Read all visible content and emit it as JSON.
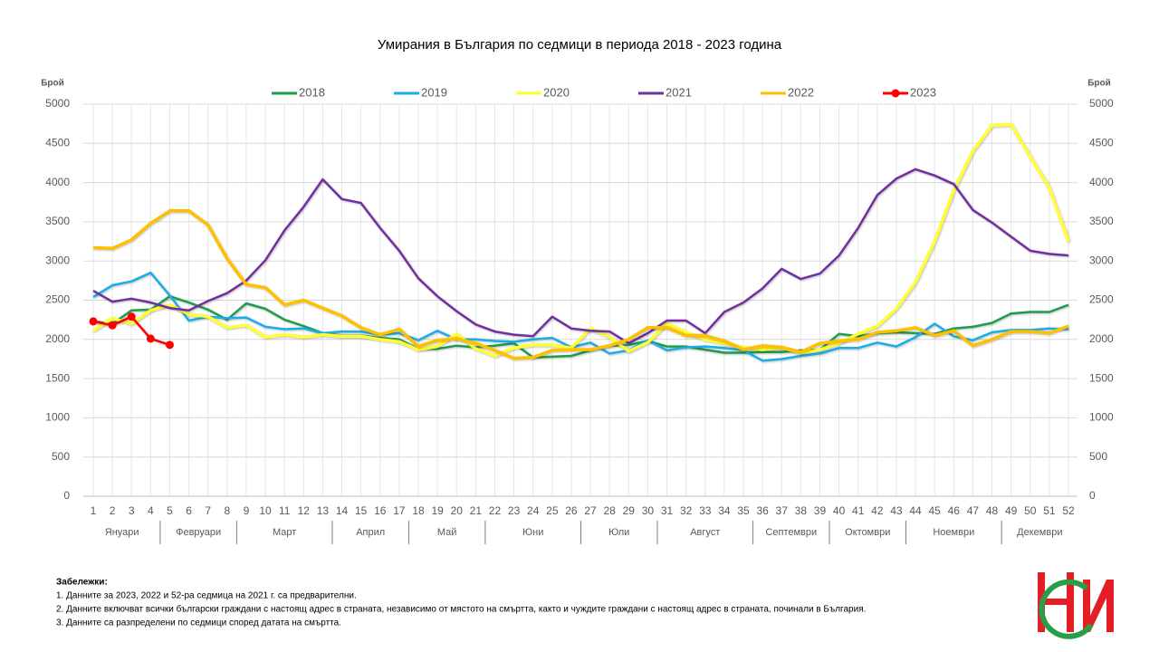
{
  "chart_data": {
    "type": "line",
    "title": "Умирания в България по седмици в периода 2018 - 2023 година",
    "ylabel": "Брой",
    "y2label": "Брой",
    "x": [
      1,
      2,
      3,
      4,
      5,
      6,
      7,
      8,
      9,
      10,
      11,
      12,
      13,
      14,
      15,
      16,
      17,
      18,
      19,
      20,
      21,
      22,
      23,
      24,
      25,
      26,
      27,
      28,
      29,
      30,
      31,
      32,
      33,
      34,
      35,
      36,
      37,
      38,
      39,
      40,
      41,
      42,
      43,
      44,
      45,
      46,
      47,
      48,
      49,
      50,
      51,
      52
    ],
    "months": [
      {
        "label": "Януари",
        "from": 1,
        "to": 4
      },
      {
        "label": "Февруари",
        "from": 5,
        "to": 8
      },
      {
        "label": "Март",
        "from": 9,
        "to": 13
      },
      {
        "label": "Април",
        "from": 14,
        "to": 17
      },
      {
        "label": "Май",
        "from": 18,
        "to": 21
      },
      {
        "label": "Юни",
        "from": 22,
        "to": 26
      },
      {
        "label": "Юли",
        "from": 27,
        "to": 30
      },
      {
        "label": "Август",
        "from": 31,
        "to": 35
      },
      {
        "label": "Септември",
        "from": 36,
        "to": 39
      },
      {
        "label": "Октомври",
        "from": 40,
        "to": 43
      },
      {
        "label": "Ноември",
        "from": 44,
        "to": 48
      },
      {
        "label": "Декември",
        "from": 49,
        "to": 52
      }
    ],
    "ylim": [
      0,
      5000
    ],
    "yticks": [
      0,
      500,
      1000,
      1500,
      2000,
      2500,
      3000,
      3500,
      4000,
      4500,
      5000
    ],
    "y2lim": [
      0,
      5000
    ],
    "y2ticks": [
      0,
      500,
      1000,
      1500,
      2000,
      2500,
      3000,
      3500,
      4000,
      4500,
      5000
    ],
    "grid": true,
    "legend": "top",
    "series": [
      {
        "name": "2018",
        "color": "#1e9e4a",
        "values": [
          2230,
          2200,
          2370,
          2380,
          2550,
          2470,
          2380,
          2250,
          2460,
          2390,
          2250,
          2170,
          2080,
          2050,
          2050,
          2020,
          2000,
          1880,
          1880,
          1920,
          1900,
          1920,
          1950,
          1770,
          1780,
          1790,
          1860,
          1920,
          1930,
          1980,
          1910,
          1910,
          1870,
          1830,
          1830,
          1840,
          1840,
          1860,
          1870,
          2070,
          2040,
          2080,
          2090,
          2080,
          2070,
          2140,
          2160,
          2210,
          2330,
          2350,
          2350,
          2440
        ]
      },
      {
        "name": "2019",
        "color": "#1aaee8",
        "values": [
          2540,
          2690,
          2740,
          2850,
          2560,
          2240,
          2290,
          2270,
          2280,
          2160,
          2130,
          2140,
          2080,
          2100,
          2100,
          2060,
          2080,
          1990,
          2110,
          2000,
          2000,
          1980,
          1970,
          2000,
          2020,
          1900,
          1960,
          1820,
          1860,
          1990,
          1860,
          1900,
          1910,
          1890,
          1860,
          1730,
          1750,
          1790,
          1820,
          1890,
          1890,
          1960,
          1910,
          2030,
          2200,
          2040,
          1990,
          2090,
          2120,
          2120,
          2140,
          2130
        ]
      },
      {
        "name": "2020",
        "color": "#ffff33",
        "values": [
          2110,
          2270,
          2200,
          2370,
          2440,
          2320,
          2290,
          2150,
          2180,
          2030,
          2060,
          2030,
          2060,
          2040,
          2040,
          2000,
          1970,
          1870,
          1910,
          2070,
          1880,
          1790,
          1890,
          1930,
          1930,
          1890,
          2140,
          2030,
          1850,
          1960,
          2200,
          2090,
          2000,
          1950,
          1900,
          1870,
          1890,
          1830,
          1870,
          1950,
          2070,
          2170,
          2390,
          2730,
          3250,
          3900,
          4400,
          4730,
          4740,
          4330,
          3930,
          3250
        ]
      },
      {
        "name": "2021",
        "color": "#7030a0",
        "values": [
          2620,
          2480,
          2520,
          2470,
          2400,
          2370,
          2490,
          2590,
          2750,
          3010,
          3390,
          3690,
          4040,
          3790,
          3740,
          3420,
          3130,
          2780,
          2550,
          2360,
          2190,
          2100,
          2060,
          2040,
          2290,
          2140,
          2110,
          2100,
          1950,
          2080,
          2240,
          2240,
          2080,
          2350,
          2470,
          2650,
          2900,
          2770,
          2840,
          3070,
          3420,
          3840,
          4050,
          4170,
          4090,
          3980,
          3650,
          3490,
          3310,
          3130,
          3090,
          3070
        ]
      },
      {
        "name": "2022",
        "color": "#ffc000",
        "values": [
          3170,
          3160,
          3270,
          3480,
          3640,
          3640,
          3460,
          3030,
          2700,
          2660,
          2440,
          2500,
          2400,
          2300,
          2150,
          2060,
          2130,
          1910,
          1990,
          2010,
          1950,
          1860,
          1760,
          1770,
          1860,
          1870,
          1870,
          1920,
          2000,
          2150,
          2150,
          2050,
          2050,
          1980,
          1870,
          1920,
          1900,
          1840,
          1950,
          1980,
          2000,
          2090,
          2110,
          2150,
          2050,
          2110,
          1920,
          2000,
          2100,
          2100,
          2080,
          2170
        ]
      },
      {
        "name": "2023",
        "color": "#ff0000",
        "markers": true,
        "values": [
          2230,
          2180,
          2290,
          2010,
          1930,
          null,
          null,
          null,
          null,
          null,
          null,
          null,
          null,
          null,
          null,
          null,
          null,
          null,
          null,
          null,
          null,
          null,
          null,
          null,
          null,
          null,
          null,
          null,
          null,
          null,
          null,
          null,
          null,
          null,
          null,
          null,
          null,
          null,
          null,
          null,
          null,
          null,
          null,
          null,
          null,
          null,
          null,
          null,
          null,
          null,
          null,
          null
        ]
      }
    ]
  },
  "notes_title": "Забележки:",
  "notes": [
    "1. Данните за 2023, 2022 и 52-ра седмица на 2021 г. са предварителни.",
    "2. Данните включват всички български граждани с настоящ адрес в страната, независимо от мястото на смъртта, както и чуждите граждани с настоящ адрес в страната, починали в България.",
    "3. Данните са разпределени по седмици според датата на смъртта."
  ]
}
